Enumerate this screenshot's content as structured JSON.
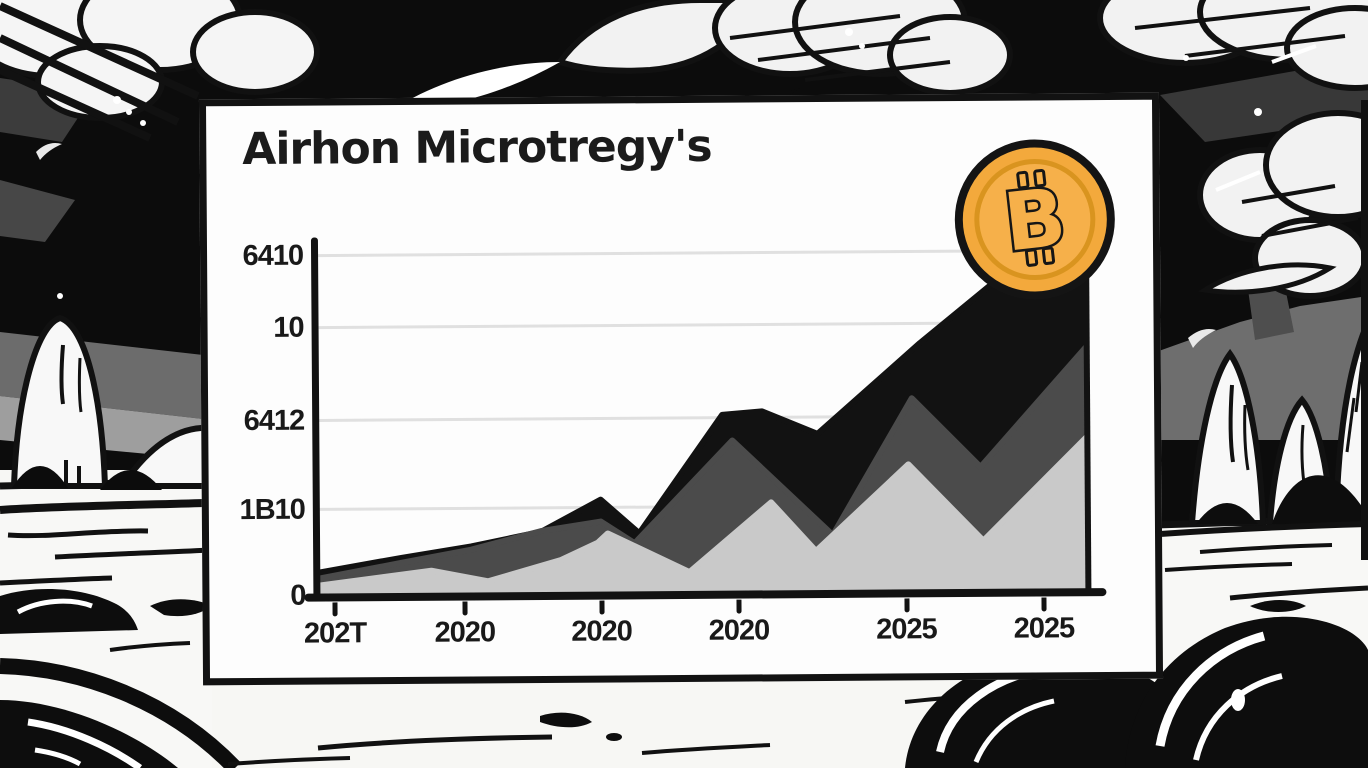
{
  "panel": {
    "title": "Airhon Microtregy's"
  },
  "coin": {
    "name": "bitcoin-coin",
    "symbol": "B"
  },
  "colors": {
    "ink": "#111111",
    "panel_bg": "#fdfdfd",
    "gridline": "#e0e0e0",
    "coin_gold": "#F3A93C",
    "coin_inner": "#F6B04A",
    "coin_ring": "#D9941F",
    "series_black": "#121212",
    "series_dark_gray": "#4b4b4b",
    "series_light_gray": "#c9c9c9"
  },
  "chart_data": {
    "type": "area",
    "title": "Airhon Microtregy's",
    "xlabel": "",
    "ylabel": "",
    "legend": "none",
    "grid": "horizontal light-gray lines",
    "ylim": [
      0,
      100
    ],
    "units": "percent of axis height (hand-drawn cartoon chart, axis labels are nonsense glyphs)",
    "y_gridlines": [
      {
        "label": "6410",
        "value": 96.3
      },
      {
        "label": "10",
        "value": 75.9
      },
      {
        "label": "6412",
        "value": 49.6
      },
      {
        "label": "1B10",
        "value": 24.4
      },
      {
        "label": "0",
        "value": 0
      }
    ],
    "x_tick_labels": [
      "202T",
      "2020",
      "2020",
      "2020",
      "2025",
      "2025"
    ],
    "x_tick_positions": [
      2,
      18.9,
      36.7,
      54.6,
      76.4,
      94.3
    ],
    "series": [
      {
        "name": "black-layer",
        "color": "#121212",
        "x": [
          0,
          10.7,
          19.8,
          28.9,
          36.7,
          41.7,
          52.6,
          57.8,
          65.0,
          78.4,
          90.1,
          100
        ],
        "values": [
          6.5,
          10.5,
          13.6,
          17.6,
          26.6,
          17.0,
          50.4,
          51.3,
          44.8,
          70.3,
          90.9,
          86.4
        ]
      },
      {
        "name": "dark-gray-layer",
        "color": "#4b4b4b",
        "x": [
          0,
          10.7,
          19.8,
          28.9,
          36.7,
          41.1,
          53.9,
          66.9,
          77.3,
          86.2,
          100
        ],
        "values": [
          4.8,
          9.1,
          12.7,
          17.8,
          20.4,
          14.2,
          43.1,
          16.1,
          54.7,
          35.1,
          68.8
        ]
      },
      {
        "name": "light-gray-layer",
        "color": "#c9c9c9",
        "x": [
          0,
          14.6,
          22.0,
          31.5,
          36.3,
          37.6,
          48.2,
          58.9,
          64.7,
          76.8,
          86.5,
          100
        ],
        "values": [
          2.8,
          6.8,
          3.7,
          9.6,
          14.4,
          17.0,
          5.9,
          25.5,
          11.6,
          36.0,
          14.2,
          43.3
        ]
      }
    ]
  }
}
